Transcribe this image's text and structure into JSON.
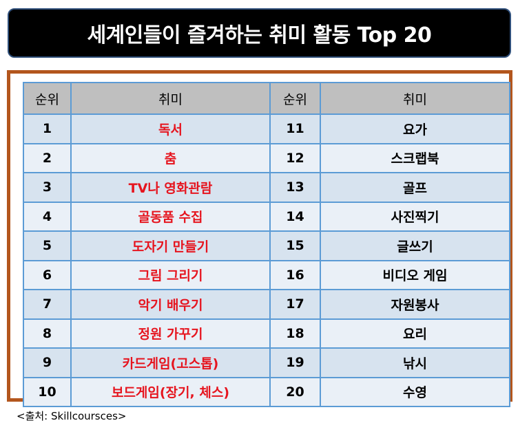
{
  "title": "세계인들이 즐겨하는 취미 활동 Top 20",
  "table": {
    "headers": [
      "순위",
      "취미",
      "순위",
      "취미"
    ],
    "rows": [
      {
        "rank_left": "1",
        "hobby_left": "독서",
        "rank_right": "11",
        "hobby_right": "요가"
      },
      {
        "rank_left": "2",
        "hobby_left": "춤",
        "rank_right": "12",
        "hobby_right": "스크랩북"
      },
      {
        "rank_left": "3",
        "hobby_left": "TV나 영화관람",
        "rank_right": "13",
        "hobby_right": "골프"
      },
      {
        "rank_left": "4",
        "hobby_left": "골동품 수집",
        "rank_right": "14",
        "hobby_right": "사진찍기"
      },
      {
        "rank_left": "5",
        "hobby_left": "도자기 만들기",
        "rank_right": "15",
        "hobby_right": "글쓰기"
      },
      {
        "rank_left": "6",
        "hobby_left": "그림 그리기",
        "rank_right": "16",
        "hobby_right": "비디오 게임"
      },
      {
        "rank_left": "7",
        "hobby_left": "악기 배우기",
        "rank_right": "17",
        "hobby_right": "자원봉사"
      },
      {
        "rank_left": "8",
        "hobby_left": "정원 가꾸기",
        "rank_right": "18",
        "hobby_right": "요리"
      },
      {
        "rank_left": "9",
        "hobby_left": "카드게임(고스톱)",
        "rank_right": "19",
        "hobby_right": "낚시"
      },
      {
        "rank_left": "10",
        "hobby_left": "보드게임(장기, 체스)",
        "rank_right": "20",
        "hobby_right": "수영"
      }
    ]
  },
  "source": "<출처: Skillcoursces>",
  "colors": {
    "title_bg": "#000000",
    "title_text": "#ffffff",
    "frame_border": "#b3561d",
    "header_bg": "#bfbfbf",
    "row_odd_bg": "#d7e3ef",
    "row_even_bg": "#eaf0f7",
    "grid_line": "#5b9bd5",
    "highlight_text": "#e6141e"
  }
}
